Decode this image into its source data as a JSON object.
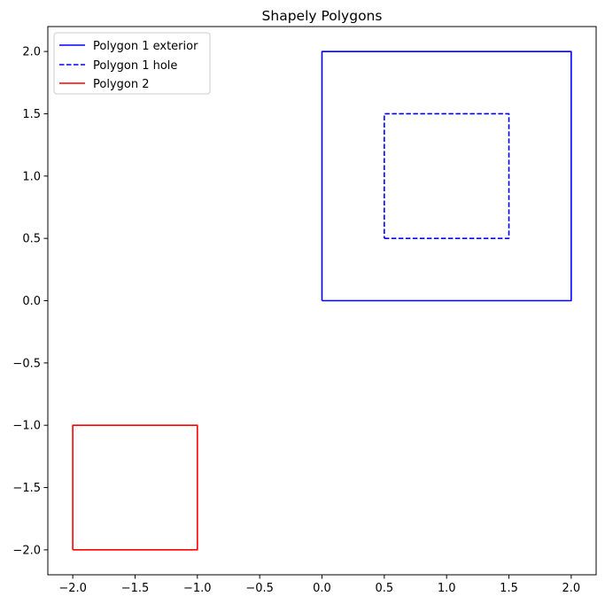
{
  "chart_data": {
    "type": "line",
    "title": "Shapely Polygons",
    "xlabel": "",
    "ylabel": "",
    "xlim": [
      -2.2,
      2.2
    ],
    "ylim": [
      -2.2,
      2.2
    ],
    "x_ticks": [
      -2.0,
      -1.5,
      -1.0,
      -0.5,
      0.0,
      0.5,
      1.0,
      1.5,
      2.0
    ],
    "x_tick_labels": [
      "−2.0",
      "−1.5",
      "−1.0",
      "−0.5",
      "0.0",
      "0.5",
      "1.0",
      "1.5",
      "2.0"
    ],
    "y_ticks": [
      2.0,
      1.5,
      1.0,
      0.5,
      0.0,
      -0.5,
      -1.0,
      -1.5,
      -2.0
    ],
    "y_tick_labels": [
      "2.0",
      "1.5",
      "1.0",
      "0.5",
      "0.0",
      "−0.5",
      "−1.0",
      "−1.5",
      "−2.0"
    ],
    "grid": false,
    "legend_position": "top-left",
    "series": [
      {
        "name": "Polygon 1 exterior",
        "color": "#0000ff",
        "linestyle": "solid",
        "points": [
          [
            0,
            0
          ],
          [
            2,
            0
          ],
          [
            2,
            2
          ],
          [
            0,
            2
          ],
          [
            0,
            0
          ]
        ]
      },
      {
        "name": "Polygon 1 hole",
        "color": "#0000ff",
        "linestyle": "dashed",
        "points": [
          [
            0.5,
            0.5
          ],
          [
            1.5,
            0.5
          ],
          [
            1.5,
            1.5
          ],
          [
            0.5,
            1.5
          ],
          [
            0.5,
            0.5
          ]
        ]
      },
      {
        "name": "Polygon 2",
        "color": "#ff0000",
        "linestyle": "solid",
        "points": [
          [
            -2,
            -2
          ],
          [
            -1,
            -2
          ],
          [
            -1,
            -1
          ],
          [
            -2,
            -1
          ],
          [
            -2,
            -2
          ]
        ]
      }
    ]
  }
}
